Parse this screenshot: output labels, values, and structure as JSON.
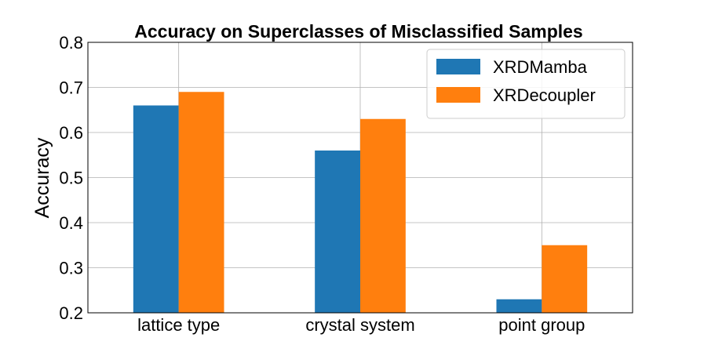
{
  "chart_data": {
    "type": "bar",
    "title": "Accuracy on Superclasses of Misclassified Samples",
    "xlabel": "",
    "ylabel": "Accuracy",
    "categories": [
      "lattice type",
      "crystal system",
      "point group"
    ],
    "series": [
      {
        "name": "XRDMamba",
        "values": [
          0.66,
          0.56,
          0.23
        ],
        "color": "#1f77b4"
      },
      {
        "name": "XRDecoupler",
        "values": [
          0.69,
          0.63,
          0.35
        ],
        "color": "#ff7f0e"
      }
    ],
    "ylim": [
      0.2,
      0.8
    ],
    "yticks": [
      "0.2",
      "0.3",
      "0.4",
      "0.5",
      "0.6",
      "0.7",
      "0.8"
    ],
    "grid": true,
    "legend_position": "top-right"
  }
}
